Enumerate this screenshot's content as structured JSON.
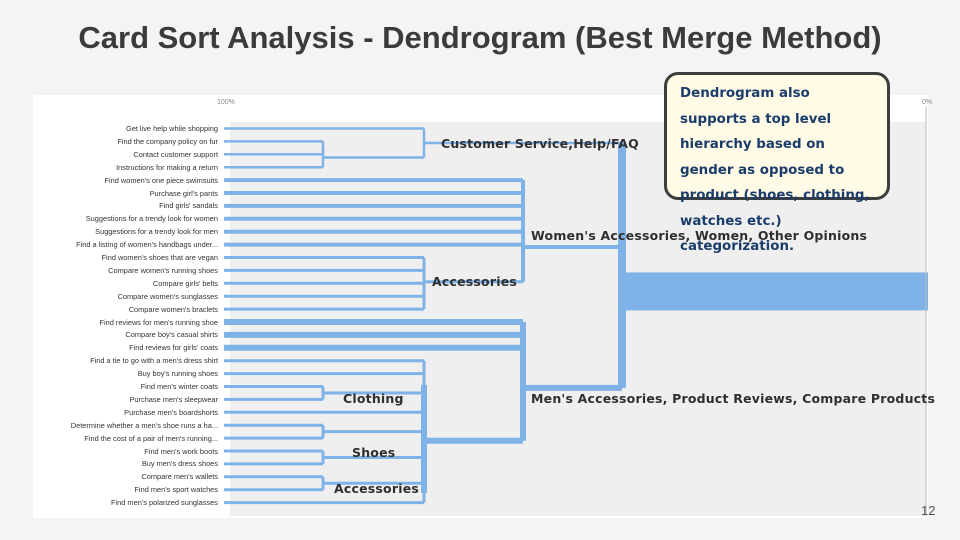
{
  "slide": {
    "title": "Card Sort Analysis - Dendrogram (Best Merge Method)",
    "page_number": "12"
  },
  "callout": {
    "text": "Dendrogram also supports a top level hierarchy based on gender as opposed to product (shoes, clothing, watches etc.) categorization."
  },
  "scale": {
    "left_label": "100%",
    "right_label": "0%"
  },
  "colors": {
    "branch": "#7fb3e8",
    "plot_bg": "#efefef",
    "callout_border": "#3d3d3d",
    "callout_text": "#1b3d6b"
  },
  "leaves": [
    "Get live help while shopping",
    "Find the company policy on fur",
    "Contact customer support",
    "Instructions for making a return",
    "Find women's one piece swimsuits",
    "Purchase girl's pants",
    "Find girls' sandals",
    "Suggestions for a trendy look for women",
    "Suggestions for a trendy look for men",
    "Find a listing of women's handbags under...",
    "Find women's shoes that are vegan",
    "Compare women's running shoes",
    "Compare girls' belts",
    "Compare women's sunglasses",
    "Compare women's braclets",
    "Find reviews for men's running shoe",
    "Compare boy's casual shirts",
    "Find reviews for girls' coats",
    "Find a tie to go with a men's dress shirt",
    "Buy boy's running shoes",
    "Find men's winter coats",
    "Purchase men's sleepwear",
    "Purchase men's boardshorts",
    "Determine whether a men's shoe runs a ha...",
    "Find the cost of a pair of men's running...",
    "Find men's work boots",
    "Buy men's dress shoes",
    "Compare men's wallets",
    "Find men's sport watches",
    "Find men's polarized sunglasses"
  ],
  "clusters": {
    "customer_service": "Customer Service,Help/FAQ",
    "womens": "Women's Accessories, Women, Other Opinions",
    "accessories_w": "Accessories",
    "mens": "Men's Accessories, Product Reviews, Compare Products",
    "clothing": "Clothing",
    "shoes": "Shoes",
    "accessories_m": "Accessories"
  }
}
